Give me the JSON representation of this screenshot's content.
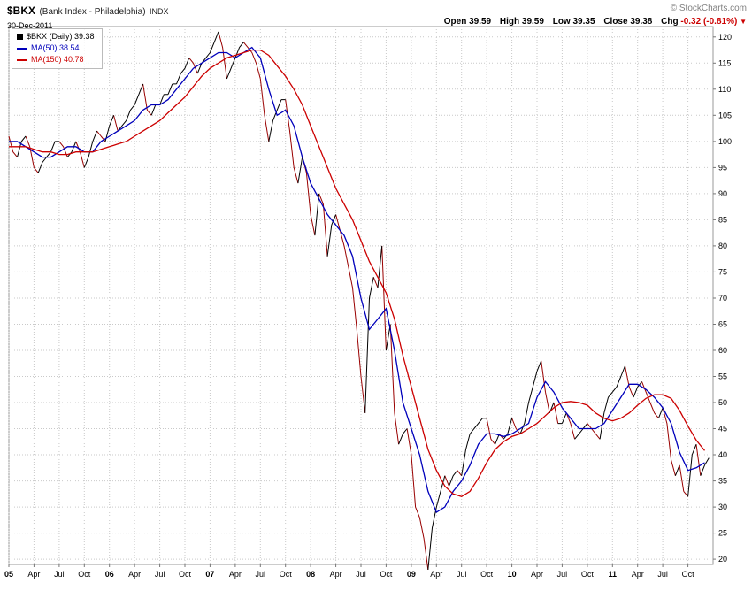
{
  "header": {
    "symbol": "$BKX",
    "name": "(Bank Index - Philadelphia)",
    "exchange": "INDX",
    "copyright": "© StockCharts.com",
    "date": "30-Dec-2011",
    "quote_items": [
      {
        "label": "Open",
        "value": "39.59"
      },
      {
        "label": "High",
        "value": "39.59"
      },
      {
        "label": "Low",
        "value": "39.35"
      },
      {
        "label": "Close",
        "value": "39.38"
      }
    ],
    "chg_label": "Chg",
    "chg_value": "-0.32 (-0.81%)",
    "chg_arrow": "▼"
  },
  "legend": {
    "price": "$BKX (Daily) 39.38",
    "ma50": "MA(50) 38.54",
    "ma150": "MA(150) 40.78"
  },
  "colors": {
    "price_up": "#000000",
    "price_down": "#990000",
    "ma50": "#0000bb",
    "ma150": "#cc0000",
    "grid": "#c9c9c9",
    "border": "#999999",
    "negative": "#cc0000"
  },
  "chart_data": {
    "type": "line",
    "title": "$BKX Bank Index - Philadelphia (Daily) with MA(50) and MA(150), Jan 2005 - Dec 2011",
    "x_start": 2005.0,
    "x_end": 2012.0,
    "ylim": [
      19,
      122
    ],
    "grid": true,
    "legend_position": "top-left",
    "y_ticks": [
      120,
      115,
      110,
      105,
      100,
      95,
      90,
      85,
      80,
      75,
      70,
      65,
      60,
      55,
      50,
      45,
      40,
      35,
      30,
      25,
      20
    ],
    "x_ticks": [
      {
        "t": 2005.0,
        "label": "05",
        "bold": true
      },
      {
        "t": 2005.25,
        "label": "Apr",
        "bold": false
      },
      {
        "t": 2005.5,
        "label": "Jul",
        "bold": false
      },
      {
        "t": 2005.75,
        "label": "Oct",
        "bold": false
      },
      {
        "t": 2006.0,
        "label": "06",
        "bold": true
      },
      {
        "t": 2006.25,
        "label": "Apr",
        "bold": false
      },
      {
        "t": 2006.5,
        "label": "Jul",
        "bold": false
      },
      {
        "t": 2006.75,
        "label": "Oct",
        "bold": false
      },
      {
        "t": 2007.0,
        "label": "07",
        "bold": true
      },
      {
        "t": 2007.25,
        "label": "Apr",
        "bold": false
      },
      {
        "t": 2007.5,
        "label": "Jul",
        "bold": false
      },
      {
        "t": 2007.75,
        "label": "Oct",
        "bold": false
      },
      {
        "t": 2008.0,
        "label": "08",
        "bold": true
      },
      {
        "t": 2008.25,
        "label": "Apr",
        "bold": false
      },
      {
        "t": 2008.5,
        "label": "Jul",
        "bold": false
      },
      {
        "t": 2008.75,
        "label": "Oct",
        "bold": false
      },
      {
        "t": 2009.0,
        "label": "09",
        "bold": true
      },
      {
        "t": 2009.25,
        "label": "Apr",
        "bold": false
      },
      {
        "t": 2009.5,
        "label": "Jul",
        "bold": false
      },
      {
        "t": 2009.75,
        "label": "Oct",
        "bold": false
      },
      {
        "t": 2010.0,
        "label": "10",
        "bold": true
      },
      {
        "t": 2010.25,
        "label": "Apr",
        "bold": false
      },
      {
        "t": 2010.5,
        "label": "Jul",
        "bold": false
      },
      {
        "t": 2010.75,
        "label": "Oct",
        "bold": false
      },
      {
        "t": 2011.0,
        "label": "11",
        "bold": true
      },
      {
        "t": 2011.25,
        "label": "Apr",
        "bold": false
      },
      {
        "t": 2011.5,
        "label": "Jul",
        "bold": false
      },
      {
        "t": 2011.75,
        "label": "Oct",
        "bold": false
      }
    ],
    "series": [
      {
        "name": "$BKX Daily Close",
        "key": "price",
        "color_mode": "updown",
        "points_per_year": 24,
        "values": [
          101,
          98,
          97,
          100,
          101,
          99,
          95,
          94,
          96,
          97,
          98,
          100,
          100,
          99,
          97,
          98,
          100,
          98,
          95,
          97,
          100,
          102,
          101,
          100,
          103,
          105,
          102,
          103,
          104,
          106,
          107,
          109,
          111,
          106,
          105,
          107,
          107,
          109,
          109,
          111,
          111,
          113,
          114,
          116,
          115,
          113,
          115,
          116,
          117,
          119,
          121,
          118,
          112,
          114,
          116,
          118,
          119,
          118,
          117,
          115,
          112,
          105,
          100,
          104,
          106,
          108,
          108,
          102,
          95,
          92,
          97,
          94,
          86,
          82,
          90,
          88,
          78,
          84,
          86,
          83,
          80,
          76,
          72,
          64,
          55,
          48,
          70,
          74,
          72,
          80,
          60,
          65,
          48,
          42,
          44,
          45,
          40,
          30,
          28,
          24,
          18,
          26,
          30,
          33,
          36,
          34,
          36,
          37,
          36,
          41,
          44,
          45,
          46,
          47,
          47,
          43,
          42,
          44,
          43,
          44,
          47,
          45,
          44,
          46,
          50,
          53,
          56,
          58,
          52,
          48,
          50,
          46,
          46,
          48,
          46,
          43,
          44,
          45,
          46,
          45,
          44,
          43,
          48,
          51,
          52,
          53,
          55,
          57,
          53,
          51,
          53,
          54,
          52,
          50,
          48,
          47,
          49,
          46,
          39,
          36,
          38,
          33,
          32,
          40,
          42,
          36,
          38,
          39.4
        ]
      },
      {
        "name": "MA(50)",
        "key": "ma50",
        "color": "#0000bb",
        "points_per_year": 12,
        "values": [
          100,
          100,
          99,
          98,
          97,
          97,
          98,
          99,
          99,
          98,
          98,
          100,
          101,
          102,
          103,
          104,
          106,
          107,
          107,
          108,
          110,
          112,
          114,
          115,
          116,
          117,
          117,
          116,
          117,
          118,
          116,
          110,
          105,
          106,
          103,
          97,
          92,
          89,
          86,
          84,
          82,
          78,
          70,
          64,
          66,
          68,
          60,
          50,
          45,
          40,
          33,
          29,
          30,
          33,
          35,
          38,
          42,
          44,
          44,
          43.5,
          44,
          45,
          46,
          51,
          54,
          52,
          49,
          47,
          45,
          45,
          45,
          46,
          48.5,
          51,
          53.5,
          53.5,
          52.5,
          51,
          49,
          46,
          40.5,
          37,
          37.5,
          38.5
        ]
      },
      {
        "name": "MA(150)",
        "key": "ma150",
        "color": "#cc0000",
        "points_per_year": 12,
        "values": [
          99,
          99,
          99,
          98.5,
          98,
          98,
          97.5,
          97.5,
          98,
          98,
          98,
          98.5,
          99,
          99.5,
          100,
          101,
          102,
          103,
          104,
          105.5,
          107,
          108.5,
          110.5,
          112.5,
          114,
          115,
          116,
          116.5,
          117,
          117.5,
          117.5,
          116.5,
          114.5,
          112.5,
          110,
          107,
          103,
          99,
          95,
          91,
          88,
          85,
          81,
          77,
          74,
          71,
          66,
          59,
          53,
          47,
          41,
          37,
          34,
          32.5,
          32,
          33,
          35.5,
          38.5,
          41,
          42.5,
          43.5,
          44,
          45,
          46,
          47.5,
          49,
          50,
          50.2,
          50,
          49.5,
          48,
          47,
          46.5,
          47,
          48,
          49.5,
          50.8,
          51.5,
          51.5,
          50.8,
          48.5,
          45.5,
          42.8,
          40.8
        ]
      }
    ]
  }
}
